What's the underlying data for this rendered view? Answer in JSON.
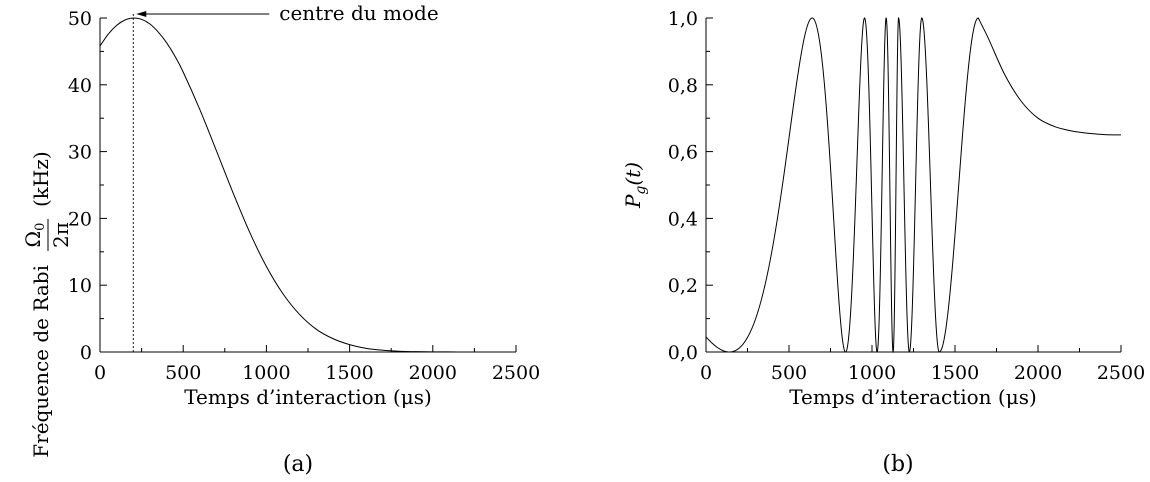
{
  "chart_data": [
    {
      "type": "line",
      "panel": "(a)",
      "xlabel": "Temps d’interaction (μs)",
      "ylabel_main": "Fréquence de Rabi",
      "ylabel_frac_num": "Ω",
      "ylabel_frac_num_sub": "0",
      "ylabel_frac_den": "2π",
      "ylabel_unit": "(kHz)",
      "xlim": [
        0,
        2500
      ],
      "ylim": [
        0,
        50
      ],
      "x_ticks": [
        "0",
        "500",
        "1000",
        "1500",
        "2000",
        "2500"
      ],
      "x_tick_values": [
        0,
        500,
        1000,
        1500,
        2000,
        2500
      ],
      "y_ticks": [
        "0",
        "10",
        "20",
        "30",
        "40",
        "50"
      ],
      "y_tick_values": [
        0,
        10,
        20,
        30,
        40,
        50
      ],
      "series": [
        {
          "x": [
            0,
            50,
            100,
            150,
            200,
            250,
            300,
            350,
            400,
            450,
            500,
            600,
            700,
            800,
            900,
            1000,
            1100,
            1200,
            1300,
            1400,
            1500,
            1600,
            1700,
            1800,
            1900,
            2000,
            2100,
            2200,
            2300,
            2400,
            2500
          ],
          "values": [
            45.8,
            47.6,
            48.9,
            49.7,
            50.0,
            49.8,
            49.1,
            47.9,
            46.3,
            44.3,
            41.9,
            36.3,
            30.1,
            23.8,
            17.9,
            12.8,
            8.7,
            5.6,
            3.4,
            2.0,
            1.1,
            0.55,
            0.27,
            0.12,
            0.05,
            0.02,
            0.01,
            0.0,
            0.0,
            0.0,
            0.0
          ]
        }
      ],
      "annotation": {
        "text": "centre du mode",
        "x": 200,
        "y": 50
      },
      "vertical_marker_x": 200
    },
    {
      "type": "line",
      "panel": "(b)",
      "xlabel": "Temps d’interaction (μs)",
      "ylabel_main": "P",
      "ylabel_sub": "g",
      "ylabel_arg": "(t)",
      "xlim": [
        0,
        2500
      ],
      "ylim": [
        0,
        1
      ],
      "x_ticks": [
        "0",
        "500",
        "1000",
        "1500",
        "2000",
        "2500"
      ],
      "x_tick_values": [
        0,
        500,
        1000,
        1500,
        2000,
        2500
      ],
      "y_ticks": [
        "0,0",
        "0,2",
        "0,4",
        "0,6",
        "0,8",
        "1,0"
      ],
      "y_tick_values": [
        0,
        0.2,
        0.4,
        0.6,
        0.8,
        1.0
      ],
      "series": [
        {
          "description_only_for_script": false,
          "extrema_x": [
            1160,
            1225,
            1300,
            1405,
            1640
          ],
          "extrema_y": [
            1.0,
            0.0,
            1.0,
            0.0,
            1.0
          ],
          "tail_x": [
            1640,
            1700,
            1800,
            1900,
            2000,
            2100,
            2200,
            2300,
            2400,
            2500
          ],
          "tail_y": [
            1.0,
            0.94,
            0.83,
            0.75,
            0.7,
            0.675,
            0.662,
            0.655,
            0.651,
            0.65
          ]
        }
      ]
    }
  ]
}
